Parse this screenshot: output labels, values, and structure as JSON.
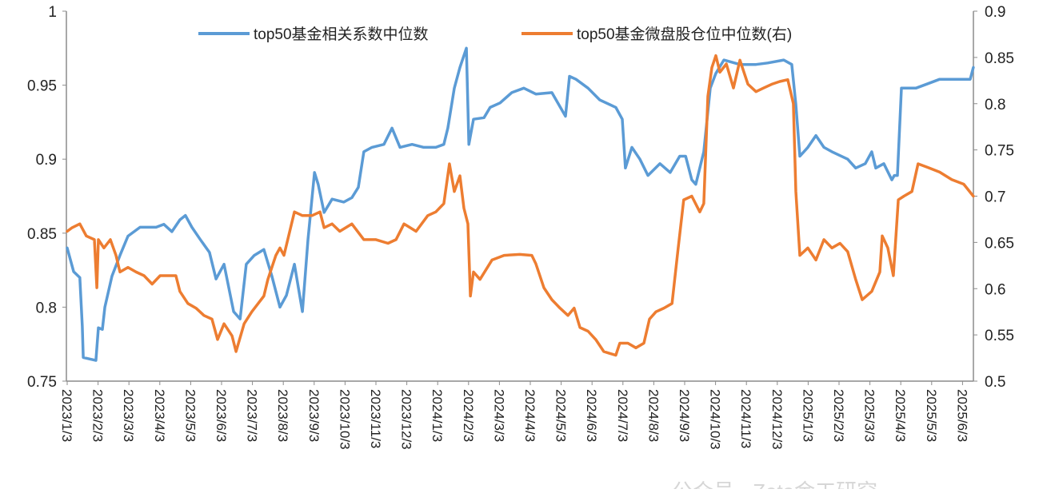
{
  "chart_data": {
    "type": "line",
    "title": "",
    "x_unit": "months since 2023/1/3",
    "categories": [
      "2023/1/3",
      "2023/2/3",
      "2023/3/3",
      "2023/4/3",
      "2023/5/3",
      "2023/6/3",
      "2023/7/3",
      "2023/8/3",
      "2023/9/3",
      "2023/10/3",
      "2023/11/3",
      "2023/12/3",
      "2024/1/3",
      "2024/2/3",
      "2024/3/3",
      "2024/4/3",
      "2024/5/3",
      "2024/6/3",
      "2024/7/3",
      "2024/8/3",
      "2024/9/3",
      "2024/10/3",
      "2024/11/3",
      "2024/12/3",
      "2025/1/3",
      "2025/2/3",
      "2025/3/3",
      "2025/4/3",
      "2025/5/3",
      "2025/6/3"
    ],
    "y_left": {
      "ylim": [
        0.75,
        1
      ],
      "ticks": [
        "0.75",
        "0.8",
        "0.85",
        "0.9",
        "0.95",
        "1"
      ],
      "tick_values": [
        0.75,
        0.8,
        0.85,
        0.9,
        0.95,
        1
      ]
    },
    "y_right": {
      "ylim": [
        0.5,
        0.9
      ],
      "ticks": [
        "0.5",
        "0.55",
        "0.6",
        "0.65",
        "0.7",
        "0.75",
        "0.8",
        "0.85",
        "0.9"
      ],
      "tick_values": [
        0.5,
        0.55,
        0.6,
        0.65,
        0.7,
        0.75,
        0.8,
        0.85,
        0.9
      ]
    },
    "legend_position": "top-center",
    "grid": false,
    "series": [
      {
        "name": "top50基金相关系数中位数",
        "axis": "left",
        "color": "#5B9BD5",
        "points": [
          [
            0,
            0.84
          ],
          [
            0.21,
            0.824
          ],
          [
            0.41,
            0.82
          ],
          [
            0.49,
            0.787
          ],
          [
            0.52,
            0.766
          ],
          [
            0.93,
            0.764
          ],
          [
            1.01,
            0.786
          ],
          [
            1.14,
            0.785
          ],
          [
            1.22,
            0.8
          ],
          [
            1.45,
            0.821
          ],
          [
            1.71,
            0.835
          ],
          [
            1.97,
            0.848
          ],
          [
            2.36,
            0.854
          ],
          [
            2.62,
            0.854
          ],
          [
            2.88,
            0.854
          ],
          [
            3.13,
            0.856
          ],
          [
            3.39,
            0.851
          ],
          [
            3.65,
            0.859
          ],
          [
            3.83,
            0.862
          ],
          [
            4.04,
            0.854
          ],
          [
            4.3,
            0.846
          ],
          [
            4.61,
            0.837
          ],
          [
            4.82,
            0.819
          ],
          [
            5.08,
            0.829
          ],
          [
            5.39,
            0.797
          ],
          [
            5.6,
            0.792
          ],
          [
            5.8,
            0.829
          ],
          [
            6.06,
            0.835
          ],
          [
            6.37,
            0.839
          ],
          [
            6.63,
            0.821
          ],
          [
            6.89,
            0.8
          ],
          [
            7.1,
            0.808
          ],
          [
            7.36,
            0.829
          ],
          [
            7.62,
            0.797
          ],
          [
            7.8,
            0.846
          ],
          [
            8.01,
            0.891
          ],
          [
            8.13,
            0.883
          ],
          [
            8.32,
            0.864
          ],
          [
            8.58,
            0.873
          ],
          [
            8.96,
            0.871
          ],
          [
            9.22,
            0.874
          ],
          [
            9.43,
            0.881
          ],
          [
            9.61,
            0.905
          ],
          [
            9.87,
            0.908
          ],
          [
            10.26,
            0.91
          ],
          [
            10.52,
            0.921
          ],
          [
            10.78,
            0.908
          ],
          [
            11.17,
            0.91
          ],
          [
            11.55,
            0.908
          ],
          [
            11.94,
            0.908
          ],
          [
            12.2,
            0.91
          ],
          [
            12.33,
            0.921
          ],
          [
            12.54,
            0.948
          ],
          [
            12.72,
            0.962
          ],
          [
            12.93,
            0.975
          ],
          [
            13.01,
            0.91
          ],
          [
            13.16,
            0.927
          ],
          [
            13.5,
            0.928
          ],
          [
            13.7,
            0.935
          ],
          [
            14.02,
            0.938
          ],
          [
            14.4,
            0.945
          ],
          [
            14.79,
            0.948
          ],
          [
            15.18,
            0.944
          ],
          [
            15.7,
            0.945
          ],
          [
            16.14,
            0.929
          ],
          [
            16.27,
            0.956
          ],
          [
            16.48,
            0.954
          ],
          [
            16.87,
            0.948
          ],
          [
            17.25,
            0.94
          ],
          [
            17.77,
            0.935
          ],
          [
            17.98,
            0.927
          ],
          [
            18.08,
            0.894
          ],
          [
            18.29,
            0.908
          ],
          [
            18.55,
            0.9
          ],
          [
            18.81,
            0.889
          ],
          [
            19.2,
            0.897
          ],
          [
            19.53,
            0.891
          ],
          [
            19.84,
            0.902
          ],
          [
            20.03,
            0.902
          ],
          [
            20.23,
            0.886
          ],
          [
            20.36,
            0.883
          ],
          [
            20.62,
            0.905
          ],
          [
            20.83,
            0.948
          ],
          [
            21.01,
            0.958
          ],
          [
            21.27,
            0.967
          ],
          [
            21.79,
            0.964
          ],
          [
            22.31,
            0.964
          ],
          [
            22.69,
            0.965
          ],
          [
            23.21,
            0.967
          ],
          [
            23.47,
            0.964
          ],
          [
            23.6,
            0.937
          ],
          [
            23.73,
            0.902
          ],
          [
            23.99,
            0.908
          ],
          [
            24.25,
            0.916
          ],
          [
            24.51,
            0.908
          ],
          [
            24.77,
            0.905
          ],
          [
            25.28,
            0.9
          ],
          [
            25.54,
            0.894
          ],
          [
            25.85,
            0.897
          ],
          [
            26.06,
            0.905
          ],
          [
            26.19,
            0.894
          ],
          [
            26.45,
            0.897
          ],
          [
            26.71,
            0.886
          ],
          [
            26.79,
            0.889
          ],
          [
            26.89,
            0.889
          ],
          [
            27.02,
            0.948
          ],
          [
            27.23,
            0.948
          ],
          [
            27.49,
            0.948
          ],
          [
            27.88,
            0.951
          ],
          [
            28.26,
            0.954
          ],
          [
            28.65,
            0.954
          ],
          [
            28.91,
            0.954
          ],
          [
            29.25,
            0.954
          ],
          [
            29.35,
            0.962
          ]
        ]
      },
      {
        "name": "top50基金微盘股仓位中位数(右)",
        "axis": "right",
        "color": "#ED7D31",
        "points": [
          [
            0,
            0.662
          ],
          [
            0.16,
            0.666
          ],
          [
            0.41,
            0.67
          ],
          [
            0.62,
            0.657
          ],
          [
            0.88,
            0.653
          ],
          [
            0.96,
            0.601
          ],
          [
            1.01,
            0.653
          ],
          [
            1.19,
            0.644
          ],
          [
            1.4,
            0.653
          ],
          [
            1.58,
            0.636
          ],
          [
            1.71,
            0.618
          ],
          [
            1.97,
            0.623
          ],
          [
            2.23,
            0.618
          ],
          [
            2.49,
            0.614
          ],
          [
            2.75,
            0.605
          ],
          [
            3.01,
            0.614
          ],
          [
            3.26,
            0.614
          ],
          [
            3.52,
            0.614
          ],
          [
            3.65,
            0.597
          ],
          [
            3.91,
            0.584
          ],
          [
            4.17,
            0.579
          ],
          [
            4.43,
            0.571
          ],
          [
            4.69,
            0.567
          ],
          [
            4.87,
            0.545
          ],
          [
            5.08,
            0.562
          ],
          [
            5.34,
            0.549
          ],
          [
            5.47,
            0.532
          ],
          [
            5.73,
            0.562
          ],
          [
            5.98,
            0.575
          ],
          [
            6.37,
            0.592
          ],
          [
            6.5,
            0.61
          ],
          [
            6.76,
            0.636
          ],
          [
            6.89,
            0.644
          ],
          [
            7.02,
            0.636
          ],
          [
            7.36,
            0.683
          ],
          [
            7.62,
            0.679
          ],
          [
            7.93,
            0.679
          ],
          [
            8.19,
            0.683
          ],
          [
            8.32,
            0.666
          ],
          [
            8.58,
            0.67
          ],
          [
            8.83,
            0.662
          ],
          [
            9.22,
            0.67
          ],
          [
            9.61,
            0.653
          ],
          [
            10.0,
            0.653
          ],
          [
            10.39,
            0.649
          ],
          [
            10.65,
            0.653
          ],
          [
            10.91,
            0.67
          ],
          [
            11.3,
            0.662
          ],
          [
            11.68,
            0.679
          ],
          [
            11.94,
            0.683
          ],
          [
            12.2,
            0.692
          ],
          [
            12.38,
            0.735
          ],
          [
            12.54,
            0.705
          ],
          [
            12.72,
            0.722
          ],
          [
            12.85,
            0.687
          ],
          [
            12.98,
            0.67
          ],
          [
            13.06,
            0.592
          ],
          [
            13.16,
            0.618
          ],
          [
            13.37,
            0.61
          ],
          [
            13.76,
            0.631
          ],
          [
            14.15,
            0.636
          ],
          [
            14.66,
            0.637
          ],
          [
            15.05,
            0.636
          ],
          [
            15.18,
            0.627
          ],
          [
            15.44,
            0.601
          ],
          [
            15.7,
            0.588
          ],
          [
            15.96,
            0.579
          ],
          [
            16.22,
            0.571
          ],
          [
            16.42,
            0.579
          ],
          [
            16.61,
            0.558
          ],
          [
            16.87,
            0.554
          ],
          [
            17.12,
            0.545
          ],
          [
            17.38,
            0.532
          ],
          [
            17.77,
            0.528
          ],
          [
            17.9,
            0.541
          ],
          [
            18.16,
            0.541
          ],
          [
            18.42,
            0.536
          ],
          [
            18.68,
            0.541
          ],
          [
            18.86,
            0.567
          ],
          [
            19.07,
            0.575
          ],
          [
            19.33,
            0.579
          ],
          [
            19.59,
            0.584
          ],
          [
            19.79,
            0.644
          ],
          [
            19.97,
            0.696
          ],
          [
            20.23,
            0.7
          ],
          [
            20.49,
            0.683
          ],
          [
            20.62,
            0.692
          ],
          [
            20.75,
            0.808
          ],
          [
            20.88,
            0.839
          ],
          [
            21.01,
            0.852
          ],
          [
            21.14,
            0.834
          ],
          [
            21.35,
            0.843
          ],
          [
            21.58,
            0.817
          ],
          [
            21.79,
            0.847
          ],
          [
            22.05,
            0.821
          ],
          [
            22.31,
            0.813
          ],
          [
            22.56,
            0.817
          ],
          [
            22.82,
            0.821
          ],
          [
            23.08,
            0.824
          ],
          [
            23.34,
            0.826
          ],
          [
            23.52,
            0.8
          ],
          [
            23.6,
            0.705
          ],
          [
            23.73,
            0.636
          ],
          [
            23.99,
            0.644
          ],
          [
            24.25,
            0.631
          ],
          [
            24.51,
            0.653
          ],
          [
            24.77,
            0.644
          ],
          [
            25.03,
            0.649
          ],
          [
            25.28,
            0.64
          ],
          [
            25.54,
            0.61
          ],
          [
            25.75,
            0.588
          ],
          [
            26.06,
            0.597
          ],
          [
            26.32,
            0.618
          ],
          [
            26.4,
            0.657
          ],
          [
            26.58,
            0.644
          ],
          [
            26.76,
            0.614
          ],
          [
            26.92,
            0.696
          ],
          [
            27.1,
            0.7
          ],
          [
            27.36,
            0.705
          ],
          [
            27.56,
            0.735
          ],
          [
            27.88,
            0.731
          ],
          [
            28.26,
            0.726
          ],
          [
            28.65,
            0.718
          ],
          [
            29.04,
            0.713
          ],
          [
            29.35,
            0.7
          ]
        ]
      }
    ]
  },
  "watermark": "公众号 · Zeta金工研究"
}
